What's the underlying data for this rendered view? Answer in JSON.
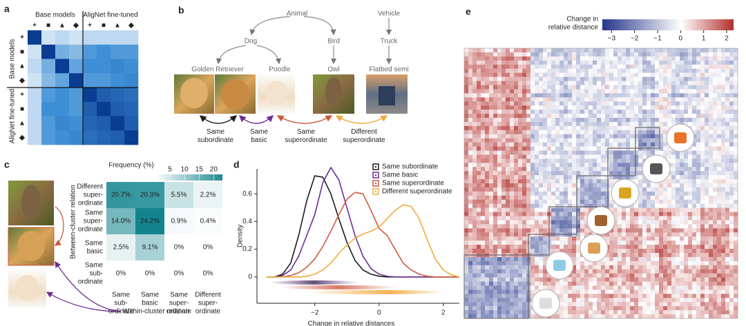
{
  "panel_labels": [
    "a",
    "b",
    "c",
    "d",
    "e"
  ],
  "panel_a": {
    "groups": [
      "Base models",
      "AligNet fine-tuned"
    ],
    "symbols": [
      "+",
      "■",
      "▲",
      "◆"
    ],
    "matrix": [
      [
        1,
        0.1,
        0.15,
        0.1,
        0.15,
        0.15,
        0.15,
        0.15
      ],
      [
        0.1,
        1,
        0.35,
        0.3,
        0.45,
        0.5,
        0.45,
        0.45
      ],
      [
        0.15,
        0.35,
        1,
        0.4,
        0.5,
        0.5,
        0.55,
        0.5
      ],
      [
        0.1,
        0.3,
        0.4,
        1,
        0.45,
        0.45,
        0.5,
        0.55
      ],
      [
        0.15,
        0.45,
        0.5,
        0.45,
        1,
        0.8,
        0.75,
        0.7
      ],
      [
        0.15,
        0.5,
        0.5,
        0.45,
        0.8,
        1,
        0.8,
        0.75
      ],
      [
        0.15,
        0.45,
        0.55,
        0.5,
        0.75,
        0.8,
        1,
        0.8
      ],
      [
        0.15,
        0.45,
        0.5,
        0.55,
        0.7,
        0.75,
        0.8,
        1
      ]
    ]
  },
  "panel_b": {
    "nodes": [
      "Animal",
      "Vehicle",
      "Dog",
      "Bird",
      "Truck",
      "Golden Retriever",
      "Poodle",
      "Owl",
      "Flatbed semi"
    ],
    "relations": [
      "Same subordinate",
      "Same basic",
      "Same superordinate",
      "Different superordinate"
    ]
  },
  "chart_data": [
    {
      "type": "heatmap",
      "row_labels": [
        [
          "Different",
          "super-",
          "ordinate"
        ],
        [
          "Same",
          "super-",
          "ordinate"
        ],
        [
          "Same",
          "basic"
        ],
        [
          "Same",
          "sub-",
          "ordinate"
        ]
      ],
      "col_labels": [
        [
          "Same",
          "sub-",
          "ordinate"
        ],
        [
          "Same",
          "basic"
        ],
        [
          "Same",
          "super-",
          "ordinate"
        ],
        [
          "Different",
          "super-",
          "ordinate"
        ]
      ],
      "label_colors": [
        "#f0a33a",
        "#d0573d",
        "#6a2c91",
        "#1a1a1a"
      ],
      "values": [
        [
          20.7,
          20.3,
          5.5,
          2.2
        ],
        [
          14.0,
          24.2,
          0.9,
          0.4
        ],
        [
          2.5,
          9.1,
          0,
          0
        ],
        [
          0,
          0,
          0,
          0
        ]
      ],
      "value_labels": [
        [
          "20.7%",
          "20.3%",
          "5.5%",
          "2.2%"
        ],
        [
          "14.0%",
          "24.2%",
          "0.9%",
          "0.4%"
        ],
        [
          "2.5%",
          "9.1%",
          "0%",
          "0%"
        ],
        [
          "0%",
          "0%",
          "0%",
          "0%"
        ]
      ],
      "colorbar_title": "Frequency (%)",
      "clim": [
        0,
        23
      ],
      "cticks": [
        5,
        10,
        15,
        20
      ],
      "color": "#1f8a94",
      "row_axis_label": "Between-cluster relation",
      "note": "Within-cluster relation"
    },
    {
      "type": "line",
      "xlabel": "Change in relative distances",
      "ylabel": "Density",
      "x": [
        -3.5,
        -3.25,
        -3,
        -2.75,
        -2.5,
        -2.25,
        -2,
        -1.75,
        -1.5,
        -1.25,
        -1,
        -0.75,
        -0.5,
        -0.25,
        0,
        0.25,
        0.5,
        0.75,
        1,
        1.25,
        1.5,
        1.75,
        2,
        2.25,
        2.5
      ],
      "series": [
        {
          "name": "Same subordinate",
          "color": "#1a1a1a",
          "values": [
            0,
            0,
            0.02,
            0.1,
            0.3,
            0.55,
            0.73,
            0.72,
            0.6,
            0.42,
            0.25,
            0.12,
            0.05,
            0.02,
            0.005,
            0,
            0,
            0,
            0,
            0,
            0,
            0,
            0,
            0,
            0
          ]
        },
        {
          "name": "Same basic",
          "color": "#6a2c91",
          "values": [
            0,
            0,
            0.01,
            0.05,
            0.15,
            0.3,
            0.45,
            0.68,
            0.79,
            0.7,
            0.5,
            0.3,
            0.15,
            0.06,
            0.02,
            0.005,
            0,
            0,
            0,
            0,
            0,
            0,
            0,
            0,
            0
          ]
        },
        {
          "name": "Same superordinate",
          "color": "#d0573d",
          "values": [
            0,
            0,
            0,
            0.01,
            0.03,
            0.07,
            0.13,
            0.22,
            0.33,
            0.45,
            0.56,
            0.61,
            0.6,
            0.48,
            0.35,
            0.3,
            0.2,
            0.1,
            0.05,
            0.02,
            0.005,
            0,
            0,
            0,
            0
          ]
        },
        {
          "name": "Different superordinate",
          "color": "#f2a93b",
          "values": [
            0,
            0,
            0,
            0,
            0,
            0.005,
            0.02,
            0.05,
            0.1,
            0.17,
            0.23,
            0.28,
            0.31,
            0.33,
            0.36,
            0.42,
            0.48,
            0.52,
            0.51,
            0.42,
            0.27,
            0.13,
            0.05,
            0.015,
            0
          ]
        }
      ],
      "xlim": [
        -3.8,
        2.5
      ],
      "ylim": [
        -0.19,
        0.78
      ],
      "xticks": [
        {
          "value": -2,
          "label": "−2"
        },
        0,
        2
      ],
      "yticks": [
        0,
        0.2,
        0.4,
        0.6
      ]
    },
    {
      "type": "heatmap",
      "colorbar_title": [
        "Change in",
        "relative distance"
      ],
      "clim": [
        -3.4,
        2.3
      ],
      "cticks": [
        {
          "value": -3,
          "label": "−3"
        },
        {
          "value": -2,
          "label": "−2"
        },
        {
          "value": -1,
          "label": "−1"
        },
        0,
        1,
        2
      ]
    }
  ]
}
